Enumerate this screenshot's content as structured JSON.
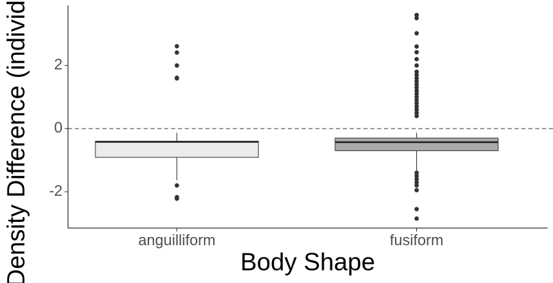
{
  "chart_data": {
    "type": "box",
    "x_label": "Body Shape",
    "y_label": "Density Difference (individuals)",
    "categories": [
      "anguilliform",
      "fusiform"
    ],
    "colors": [
      "#ebebeb",
      "#ababab"
    ],
    "boxes": [
      {
        "whisker_low": -1.63,
        "q1": -0.91,
        "median": -0.42,
        "q3": -0.4,
        "whisker_high": -0.13,
        "outliers": [
          2.61,
          2.41,
          2.0,
          1.59,
          1.61,
          -1.8,
          -2.17,
          -2.22
        ]
      },
      {
        "whisker_low": -1.33,
        "q1": -0.7,
        "median": -0.43,
        "q3": -0.3,
        "whisker_high": -0.13,
        "outliers": [
          3.6,
          3.5,
          3.02,
          2.6,
          2.42,
          2.2,
          2.0,
          1.8,
          1.7,
          1.6,
          1.5,
          1.4,
          1.3,
          1.2,
          1.1,
          1.0,
          0.9,
          0.8,
          0.7,
          0.6,
          0.5,
          0.4,
          -1.4,
          -1.5,
          -1.6,
          -1.7,
          -1.8,
          -1.95,
          -2.55,
          -2.85
        ]
      }
    ],
    "reference_line": 0,
    "ylim": [
      -3.15,
      3.9
    ],
    "yticks": [
      -2,
      0,
      2
    ]
  }
}
